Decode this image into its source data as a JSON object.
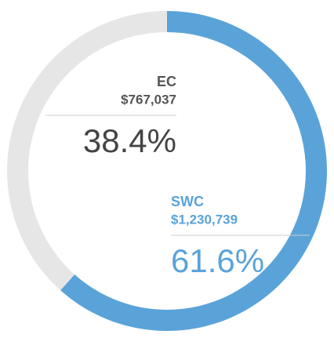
{
  "chart_data": {
    "type": "pie",
    "categories": [
      "EC",
      "SWC"
    ],
    "values": [
      38.4,
      61.6
    ],
    "value_labels": [
      "38.4%",
      "61.6%"
    ],
    "amount_labels": [
      "$767,037",
      "$1,230,739"
    ],
    "colors": [
      "#e6e6e6",
      "#5aa3d9"
    ],
    "label_colors": [
      "#555555",
      "#5aa3d9"
    ],
    "donut": true
  }
}
